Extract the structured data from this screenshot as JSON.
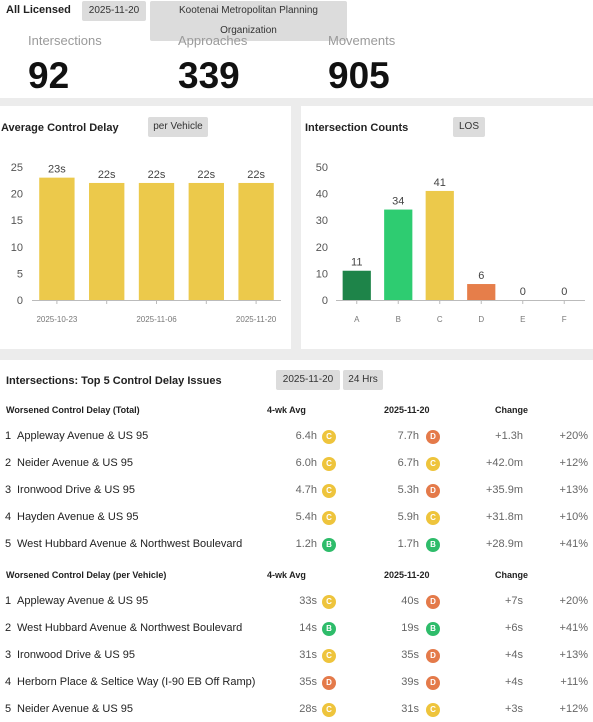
{
  "header": {
    "title": "All Licensed",
    "date": "2025-11-20",
    "organization": "Kootenai Metropolitan Planning Organization"
  },
  "kpis": {
    "intersections_label": "Intersections",
    "intersections_value": "92",
    "approaches_label": "Approaches",
    "approaches_value": "339",
    "movements_label": "Movements",
    "movements_value": "905"
  },
  "delay_panel": {
    "title": "Average Control Delay",
    "toggle": "per Vehicle"
  },
  "counts_panel": {
    "title": "Intersection Counts",
    "toggle": "LOS"
  },
  "chart_data": [
    {
      "type": "bar",
      "title": "Average Control Delay",
      "categories": [
        "2025-10-23",
        "",
        "2025-11-06",
        "",
        "2025-11-20"
      ],
      "values": [
        23,
        22,
        22,
        22,
        22
      ],
      "labels": [
        "23s",
        "22s",
        "22s",
        "22s",
        "22s"
      ],
      "ylim": [
        0,
        25
      ],
      "yticks": [
        0,
        5,
        10,
        15,
        20,
        25
      ],
      "color": "#ecc94b"
    },
    {
      "type": "bar",
      "title": "Intersection Counts",
      "categories": [
        "A",
        "B",
        "C",
        "D",
        "E",
        "F"
      ],
      "values": [
        11,
        34,
        41,
        6,
        0,
        0
      ],
      "labels": [
        "11",
        "34",
        "41",
        "6",
        "0",
        "0"
      ],
      "ylim": [
        0,
        50
      ],
      "yticks": [
        0,
        10,
        20,
        30,
        40,
        50
      ],
      "colors": [
        "#1e8449",
        "#2ecc71",
        "#ecc94b",
        "#e67e4a",
        "#999999",
        "#999999"
      ]
    }
  ],
  "table": {
    "title": "Intersections: Top 5 Control Delay Issues",
    "date": "2025-11-20",
    "period": "24 Hrs",
    "los_colors": {
      "B": "#2ebc6a",
      "C": "#eec43c",
      "D": "#e47a4a"
    },
    "sections": [
      {
        "header": "Worsened Control Delay (Total)",
        "col_avg": "4-wk Avg",
        "col_date": "2025-11-20",
        "col_change": "Change",
        "rows": [
          {
            "rank": "1",
            "name": "Appleway Avenue & US 95",
            "avg": "6.4h",
            "avg_los": "C",
            "cur": "7.7h",
            "cur_los": "D",
            "change": "+1.3h",
            "pct": "+20%"
          },
          {
            "rank": "2",
            "name": "Neider Avenue & US 95",
            "avg": "6.0h",
            "avg_los": "C",
            "cur": "6.7h",
            "cur_los": "C",
            "change": "+42.0m",
            "pct": "+12%"
          },
          {
            "rank": "3",
            "name": "Ironwood Drive & US 95",
            "avg": "4.7h",
            "avg_los": "C",
            "cur": "5.3h",
            "cur_los": "D",
            "change": "+35.9m",
            "pct": "+13%"
          },
          {
            "rank": "4",
            "name": "Hayden Avenue & US 95",
            "avg": "5.4h",
            "avg_los": "C",
            "cur": "5.9h",
            "cur_los": "C",
            "change": "+31.8m",
            "pct": "+10%"
          },
          {
            "rank": "5",
            "name": "West Hubbard Avenue & Northwest Boulevard",
            "avg": "1.2h",
            "avg_los": "B",
            "cur": "1.7h",
            "cur_los": "B",
            "change": "+28.9m",
            "pct": "+41%"
          }
        ]
      },
      {
        "header": "Worsened Control Delay (per Vehicle)",
        "col_avg": "4-wk Avg",
        "col_date": "2025-11-20",
        "col_change": "Change",
        "rows": [
          {
            "rank": "1",
            "name": "Appleway Avenue & US 95",
            "avg": "33s",
            "avg_los": "C",
            "cur": "40s",
            "cur_los": "D",
            "change": "+7s",
            "pct": "+20%"
          },
          {
            "rank": "2",
            "name": "West Hubbard Avenue & Northwest Boulevard",
            "avg": "14s",
            "avg_los": "B",
            "cur": "19s",
            "cur_los": "B",
            "change": "+6s",
            "pct": "+41%"
          },
          {
            "rank": "3",
            "name": "Ironwood Drive & US 95",
            "avg": "31s",
            "avg_los": "C",
            "cur": "35s",
            "cur_los": "D",
            "change": "+4s",
            "pct": "+13%"
          },
          {
            "rank": "4",
            "name": "Herborn Place & Seltice Way (I-90 EB Off Ramp)",
            "avg": "35s",
            "avg_los": "D",
            "cur": "39s",
            "cur_los": "D",
            "change": "+4s",
            "pct": "+11%"
          },
          {
            "rank": "5",
            "name": "Neider Avenue & US 95",
            "avg": "28s",
            "avg_los": "C",
            "cur": "31s",
            "cur_los": "C",
            "change": "+3s",
            "pct": "+12%"
          }
        ]
      }
    ]
  }
}
